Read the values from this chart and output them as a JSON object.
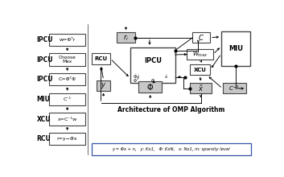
{
  "bg_color": "#ffffff",
  "title": "Architecture of OMP Algorithm",
  "caption": "y = Φx + n,   y: Kx1,   Φ: KxN,   x: Nx1, m: sparsity level",
  "left_labels": [
    "IPCU",
    "IPCU",
    "IPCU",
    "MIU",
    "XCU",
    "RCU"
  ],
  "left_eqs": [
    "w=Φᵀr",
    "Choose\nMax",
    "C=Φ̃ᵀΦ̃",
    "C⁻¹",
    "x=C⁻¹w",
    "r=y−Φ̃x"
  ],
  "gray": "#c8c8c8",
  "white": "#ffffff",
  "ec": "#444444",
  "blue_ec": "#3355aa"
}
